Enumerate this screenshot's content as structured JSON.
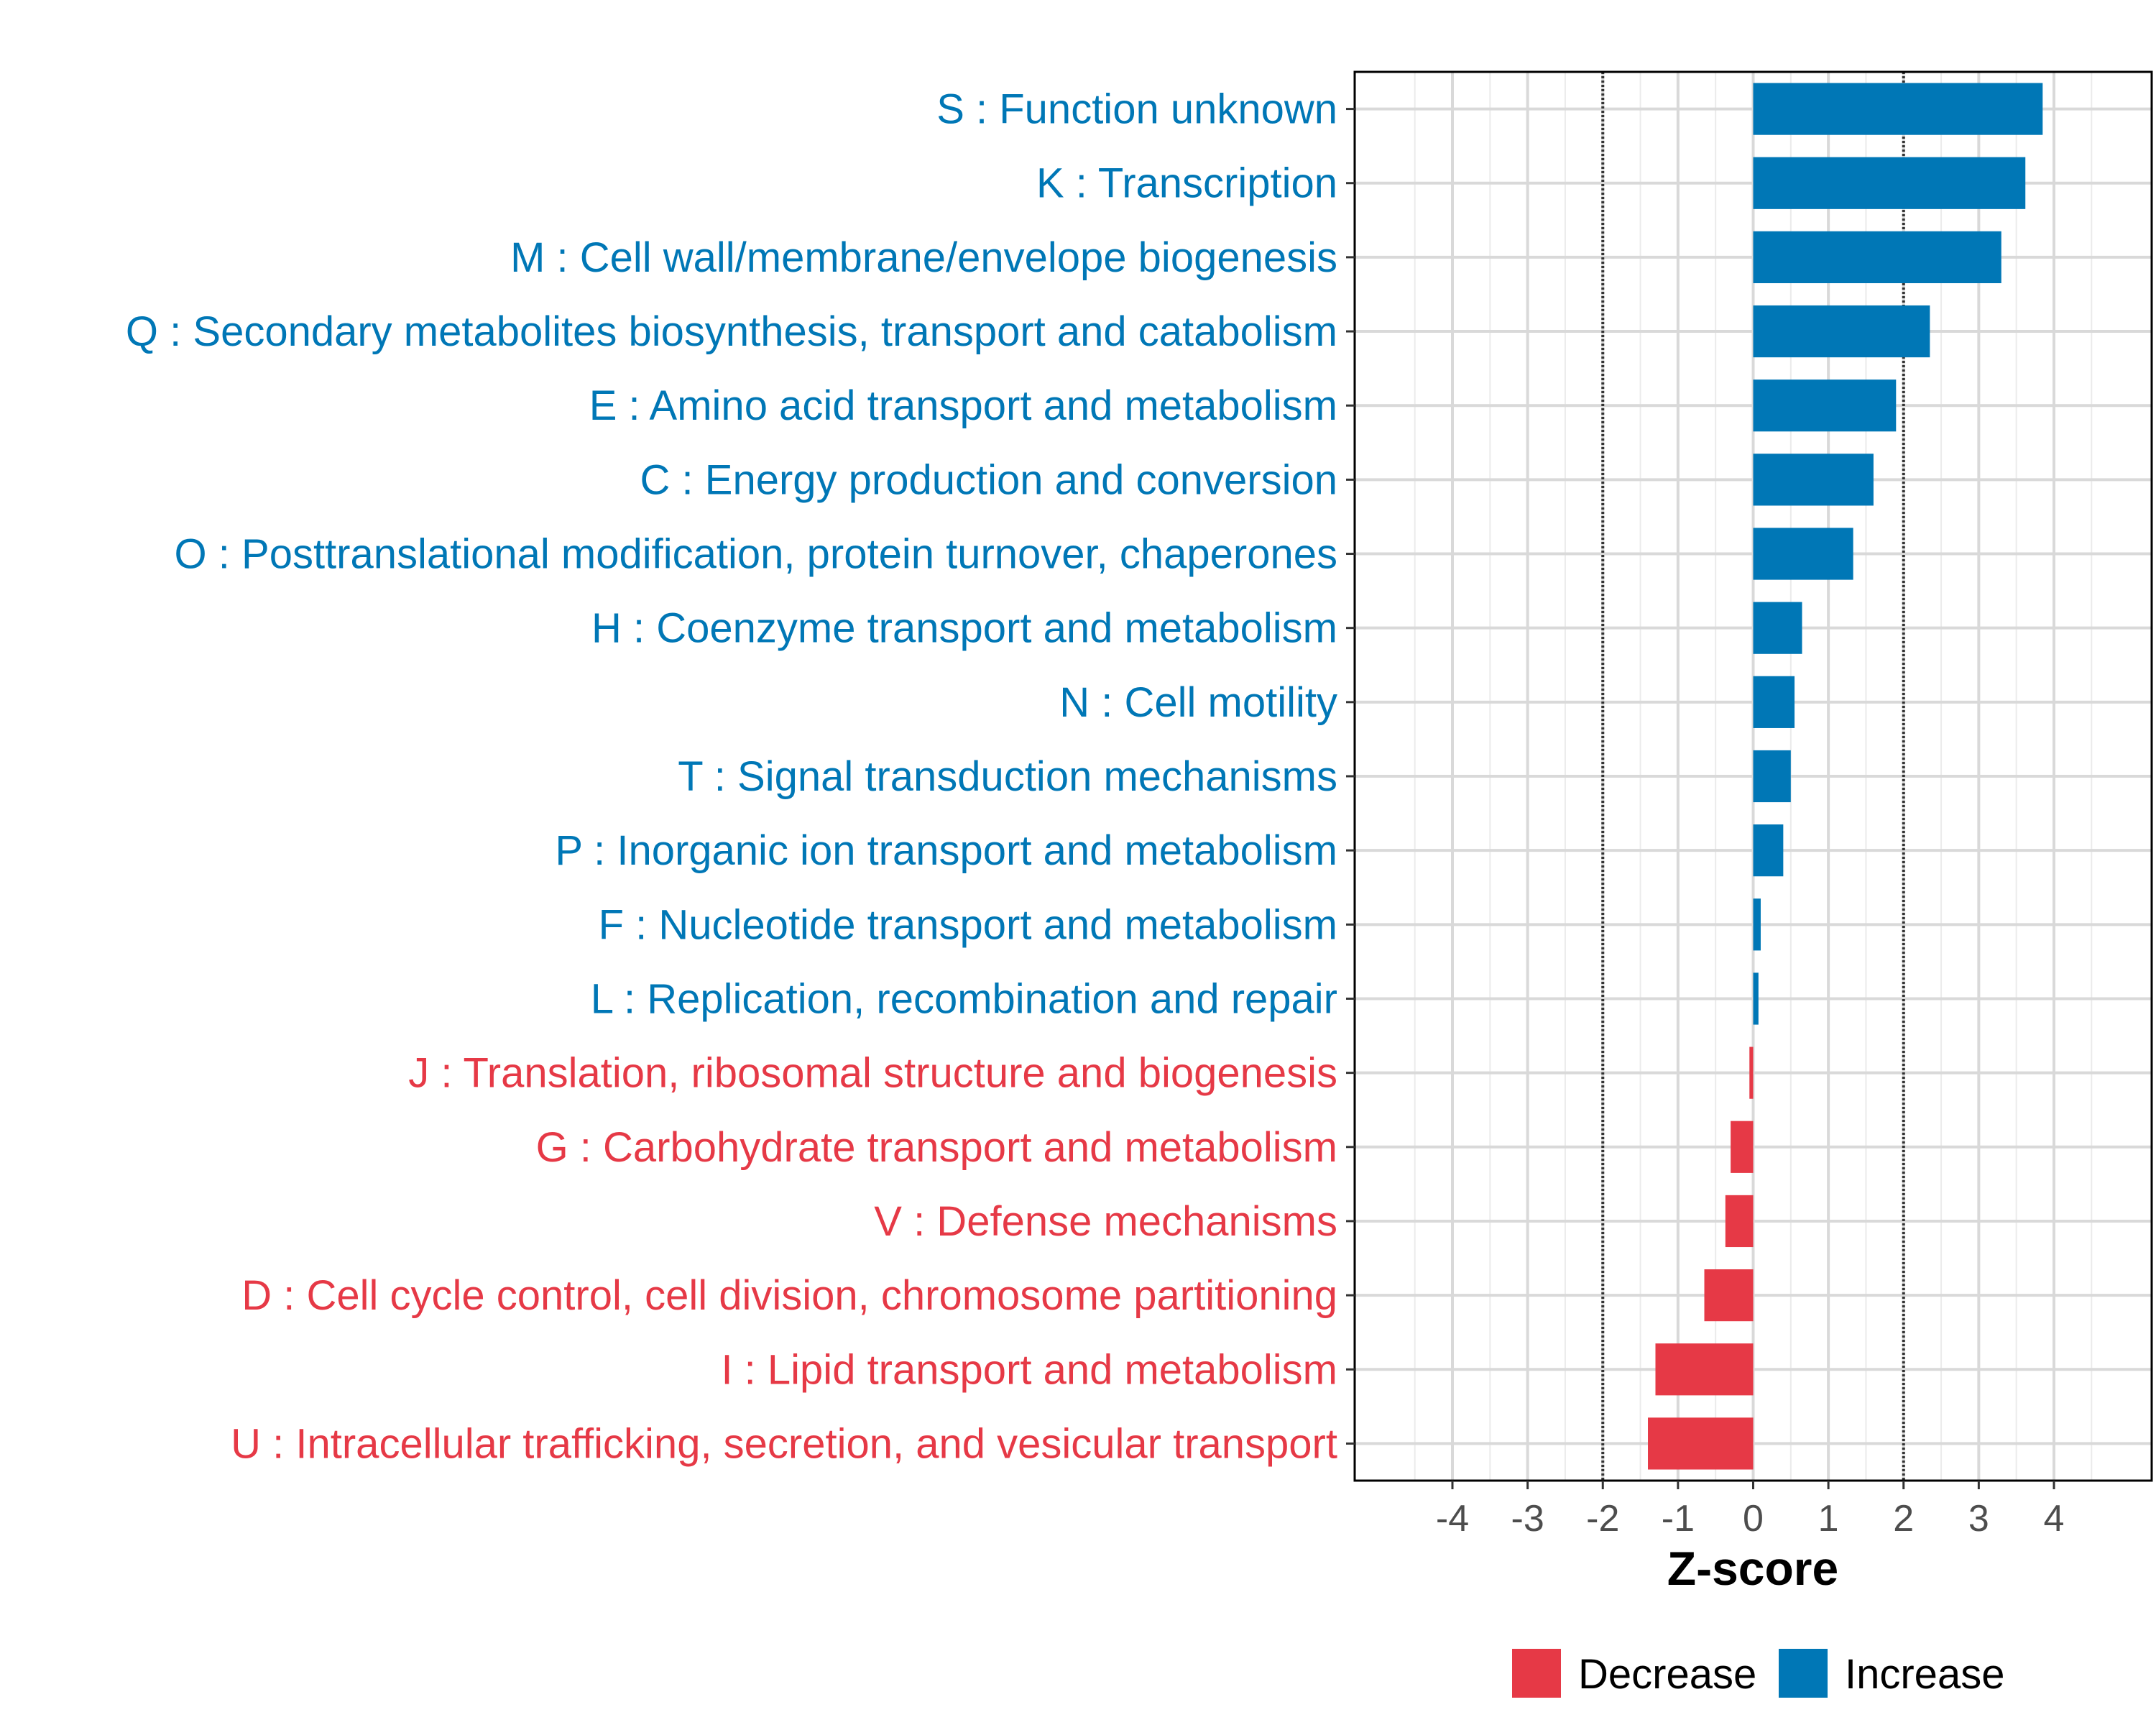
{
  "chart_data": {
    "type": "bar",
    "orientation": "horizontal",
    "categories": [
      "S : Function unknown",
      "K : Transcription",
      "M : Cell wall/membrane/envelope biogenesis",
      "Q : Secondary metabolites biosynthesis, transport and catabolism",
      "E : Amino acid transport and metabolism",
      "C : Energy production and conversion",
      "O : Posttranslational modification, protein turnover, chaperones",
      "H : Coenzyme transport and metabolism",
      "N : Cell motility",
      "T : Signal transduction mechanisms",
      "P : Inorganic ion transport and metabolism",
      "F : Nucleotide transport and metabolism",
      "L : Replication, recombination and repair",
      "J : Translation, ribosomal structure and biogenesis",
      "G : Carbohydrate transport and metabolism",
      "V : Defense mechanisms",
      "D : Cell cycle control, cell division, chromosome partitioning",
      "I : Lipid transport and metabolism",
      "U : Intracellular trafficking, secretion, and vesicular transport"
    ],
    "values": [
      3.85,
      3.62,
      3.3,
      2.35,
      1.9,
      1.6,
      1.33,
      0.65,
      0.55,
      0.5,
      0.4,
      0.1,
      0.07,
      -0.05,
      -0.3,
      -0.37,
      -0.65,
      -1.3,
      -1.4
    ],
    "groups": [
      "Increase",
      "Increase",
      "Increase",
      "Increase",
      "Increase",
      "Increase",
      "Increase",
      "Increase",
      "Increase",
      "Increase",
      "Increase",
      "Increase",
      "Increase",
      "Decrease",
      "Decrease",
      "Decrease",
      "Decrease",
      "Decrease",
      "Decrease"
    ],
    "xlabel": "Z-score",
    "ylabel": "",
    "xlim": [
      -5.3,
      5.3
    ],
    "xticks": [
      -4,
      -3,
      -2,
      -1,
      0,
      1,
      2,
      3,
      4
    ],
    "reference_lines": [
      -2,
      2
    ],
    "grid": true,
    "legend": {
      "position": "bottom",
      "entries": [
        {
          "name": "Decrease",
          "color": "#E63946"
        },
        {
          "name": "Increase",
          "color": "#0077B6"
        }
      ]
    },
    "colors": {
      "Decrease": "#E63946",
      "Increase": "#0077B6"
    }
  }
}
